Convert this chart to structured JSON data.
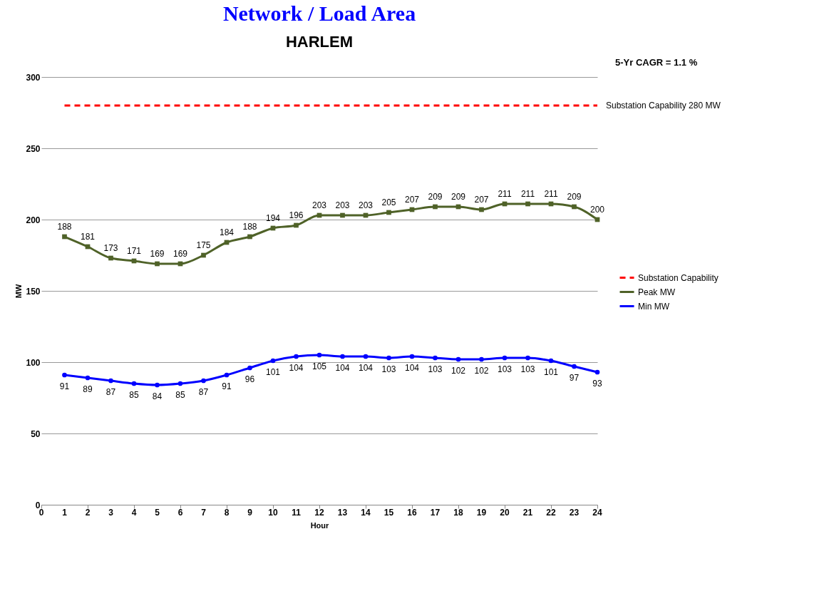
{
  "chart_data": {
    "type": "line",
    "title": "Network / Load Area",
    "subtitle": "HARLEM",
    "xlabel": "Hour",
    "ylabel": "MW",
    "x": [
      1,
      2,
      3,
      4,
      5,
      6,
      7,
      8,
      9,
      10,
      11,
      12,
      13,
      14,
      15,
      16,
      17,
      18,
      19,
      20,
      21,
      22,
      23,
      24
    ],
    "xlim": [
      0,
      24
    ],
    "xticks": [
      0,
      1,
      2,
      3,
      4,
      5,
      6,
      7,
      8,
      9,
      10,
      11,
      12,
      13,
      14,
      15,
      16,
      17,
      18,
      19,
      20,
      21,
      22,
      23,
      24
    ],
    "ylim": [
      0,
      300
    ],
    "yticks": [
      0,
      50,
      100,
      150,
      200,
      250,
      300
    ],
    "grid": "y",
    "legend": "right",
    "series": [
      {
        "name": "Substation Capability",
        "color": "#ff0000",
        "line_style": "dashed",
        "marker": "none",
        "x": [
          1,
          24
        ],
        "values": [
          280,
          280
        ]
      },
      {
        "name": "Peak MW",
        "color": "#4f6228",
        "marker": "square",
        "values": [
          188,
          181,
          173,
          171,
          169,
          169,
          175,
          184,
          188,
          194,
          196,
          203,
          203,
          203,
          205,
          207,
          209,
          209,
          207,
          211,
          211,
          211,
          209,
          200
        ],
        "value_labels": [
          "188",
          "181",
          "173",
          "171",
          "169",
          "169",
          "175",
          "184",
          "188",
          "194",
          "196",
          "203",
          "203",
          "203",
          "205",
          "207",
          "209",
          "209",
          "207",
          "211",
          "211",
          "211",
          "209",
          "200"
        ]
      },
      {
        "name": "Min MW",
        "color": "#0000ff",
        "marker": "circle",
        "values": [
          91,
          89,
          87,
          85,
          84,
          85,
          87,
          91,
          96,
          101,
          104,
          105,
          104,
          104,
          103,
          104,
          103,
          102,
          102,
          103,
          103,
          101,
          97,
          93
        ],
        "value_labels": [
          "91",
          "89",
          "87",
          "85",
          "84",
          "85",
          "87",
          "91",
          "96",
          "101",
          "104",
          "105",
          "104",
          "104",
          "103",
          "104",
          "103",
          "102",
          "102",
          "103",
          "103",
          "101",
          "97",
          "93"
        ]
      }
    ],
    "annotations": [
      "5-Yr CAGR = 1.1 %",
      {
        "text": "Substation Capability 280 MW",
        "x": 24,
        "y": 280
      }
    ]
  }
}
